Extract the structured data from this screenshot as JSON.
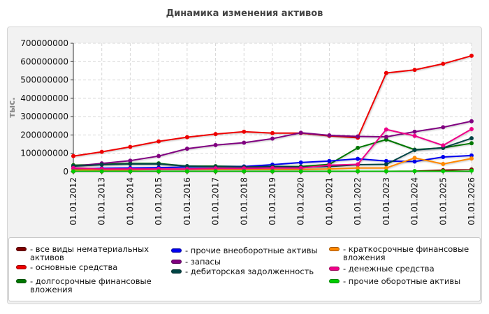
{
  "chart_data": {
    "type": "line",
    "title": "Динамика изменения активов",
    "ylabel": "тыс.",
    "xlabel": "",
    "ylim": [
      0,
      700000000
    ],
    "yticks": [
      "0",
      "100000000",
      "200000000",
      "300000000",
      "400000000",
      "500000000",
      "600000000",
      "700000000"
    ],
    "ytick_values": [
      0,
      100000000,
      200000000,
      300000000,
      400000000,
      500000000,
      600000000,
      700000000
    ],
    "x": [
      "01.01.2012",
      "01.01.2013",
      "01.01.2014",
      "01.01.2015",
      "01.01.2016",
      "01.01.2017",
      "01.01.2018",
      "01.01.2019",
      "01.01.2020",
      "01.01.2021",
      "01.01.2022",
      "01.01.2023",
      "01.01.2024",
      "01.01.2025",
      "01.01.2026"
    ],
    "grid": true,
    "legend_position": "bottom",
    "series": [
      {
        "name": "все виды нематериальных активов",
        "color": "#800000",
        "values": [
          1000000,
          1000000,
          1000000,
          1000000,
          1000000,
          1000000,
          1000000,
          1000000,
          1000000,
          1000000,
          1500000,
          2000000,
          3000000,
          8000000,
          12000000
        ]
      },
      {
        "name": "основные средства",
        "color": "#ee0000",
        "values": [
          85000000,
          108000000,
          135000000,
          165000000,
          188000000,
          205000000,
          218000000,
          210000000,
          210000000,
          195000000,
          185000000,
          538000000,
          555000000,
          588000000,
          632000000
        ]
      },
      {
        "name": "долгосрочные финансовые вложения",
        "color": "#007700",
        "values": [
          35000000,
          40000000,
          45000000,
          45000000,
          30000000,
          30000000,
          28000000,
          28000000,
          28000000,
          40000000,
          130000000,
          175000000,
          120000000,
          130000000,
          155000000
        ]
      },
      {
        "name": "прочие внеоборотные активы",
        "color": "#0000ee",
        "values": [
          15000000,
          18000000,
          20000000,
          22000000,
          25000000,
          27000000,
          28000000,
          38000000,
          50000000,
          58000000,
          70000000,
          58000000,
          55000000,
          80000000,
          88000000
        ]
      },
      {
        "name": "запасы",
        "color": "#800080",
        "values": [
          30000000,
          45000000,
          60000000,
          85000000,
          125000000,
          145000000,
          158000000,
          180000000,
          212000000,
          198000000,
          192000000,
          190000000,
          218000000,
          242000000,
          275000000
        ]
      },
      {
        "name": "дебиторская задолженность",
        "color": "#004444",
        "values": [
          30000000,
          38000000,
          42000000,
          42000000,
          30000000,
          27000000,
          25000000,
          28000000,
          25000000,
          28000000,
          38000000,
          40000000,
          118000000,
          130000000,
          182000000
        ]
      },
      {
        "name": "краткосрочные финансовые вложения",
        "color": "#ff8800",
        "values": [
          10000000,
          10000000,
          10000000,
          12000000,
          12000000,
          12000000,
          12000000,
          12000000,
          12000000,
          15000000,
          20000000,
          20000000,
          75000000,
          42000000,
          72000000
        ]
      },
      {
        "name": "денежные средства",
        "color": "#ee0088",
        "values": [
          20000000,
          15000000,
          15000000,
          15000000,
          15000000,
          18000000,
          18000000,
          20000000,
          20000000,
          35000000,
          40000000,
          230000000,
          195000000,
          143000000,
          232000000
        ]
      },
      {
        "name": "прочие оборотные активы",
        "color": "#00cc00",
        "values": [
          2000000,
          2000000,
          2000000,
          2000000,
          2000000,
          2000000,
          2000000,
          2000000,
          2000000,
          2000000,
          2000000,
          2000000,
          3000000,
          3000000,
          5000000
        ]
      }
    ]
  }
}
